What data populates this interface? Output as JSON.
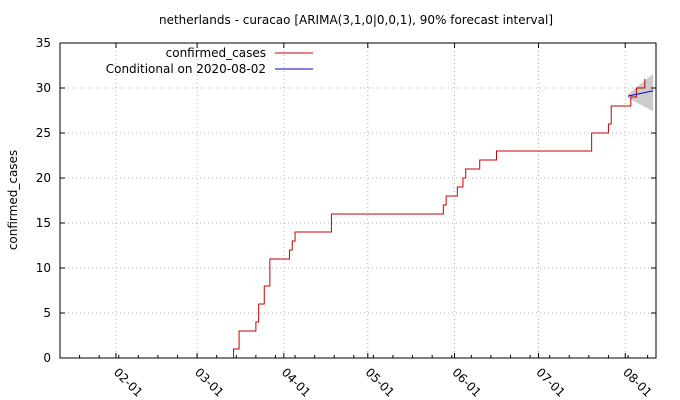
{
  "chart_data": {
    "type": "line",
    "title": "netherlands - curacao [ARIMA(3,1,0|0,0,1), 90% forecast interval]",
    "ylabel": "confirmed_cases",
    "xlabel": "",
    "ylim": [
      0,
      35
    ],
    "yticks": [
      0,
      5,
      10,
      15,
      20,
      25,
      30,
      35
    ],
    "xrange": [
      "2020-01-12",
      "2020-08-12"
    ],
    "xticks": [
      {
        "date": "2020-02-01",
        "label": "02-01"
      },
      {
        "date": "2020-03-01",
        "label": "03-01"
      },
      {
        "date": "2020-04-01",
        "label": "04-01"
      },
      {
        "date": "2020-05-01",
        "label": "05-01"
      },
      {
        "date": "2020-06-01",
        "label": "06-01"
      },
      {
        "date": "2020-07-01",
        "label": "07-01"
      },
      {
        "date": "2020-08-01",
        "label": "08-01"
      }
    ],
    "grid": true,
    "legend_position": "top-left",
    "series": [
      {
        "name": "confirmed_cases",
        "color": "#cc0000",
        "style": "step",
        "x": [
          "2020-03-12",
          "2020-03-14",
          "2020-03-16",
          "2020-03-22",
          "2020-03-23",
          "2020-03-25",
          "2020-03-27",
          "2020-03-29",
          "2020-04-03",
          "2020-04-04",
          "2020-04-05",
          "2020-04-18",
          "2020-05-27",
          "2020-05-28",
          "2020-05-29",
          "2020-06-02",
          "2020-06-03",
          "2020-06-04",
          "2020-06-05",
          "2020-06-10",
          "2020-06-11",
          "2020-06-16",
          "2020-06-17",
          "2020-06-18",
          "2020-07-20",
          "2020-07-26",
          "2020-07-27",
          "2020-07-28",
          "2020-08-03",
          "2020-08-05",
          "2020-08-08"
        ],
        "values": [
          0,
          1,
          3,
          4,
          6,
          8,
          11,
          11,
          12,
          13,
          14,
          16,
          16,
          17,
          18,
          19,
          19,
          20,
          21,
          22,
          22,
          23,
          23,
          23,
          25,
          26,
          28,
          28,
          29,
          30,
          31
        ]
      },
      {
        "name": "Conditional on 2020-08-02",
        "color": "#0000cc",
        "style": "line",
        "x": [
          "2020-08-02",
          "2020-08-11"
        ],
        "values": [
          29.1,
          29.7
        ]
      }
    ],
    "forecast_interval": {
      "x": [
        "2020-08-02",
        "2020-08-11"
      ],
      "lower": [
        28.9,
        27.4
      ],
      "upper": [
        29.3,
        31.6
      ],
      "color": "#cccccc"
    }
  }
}
